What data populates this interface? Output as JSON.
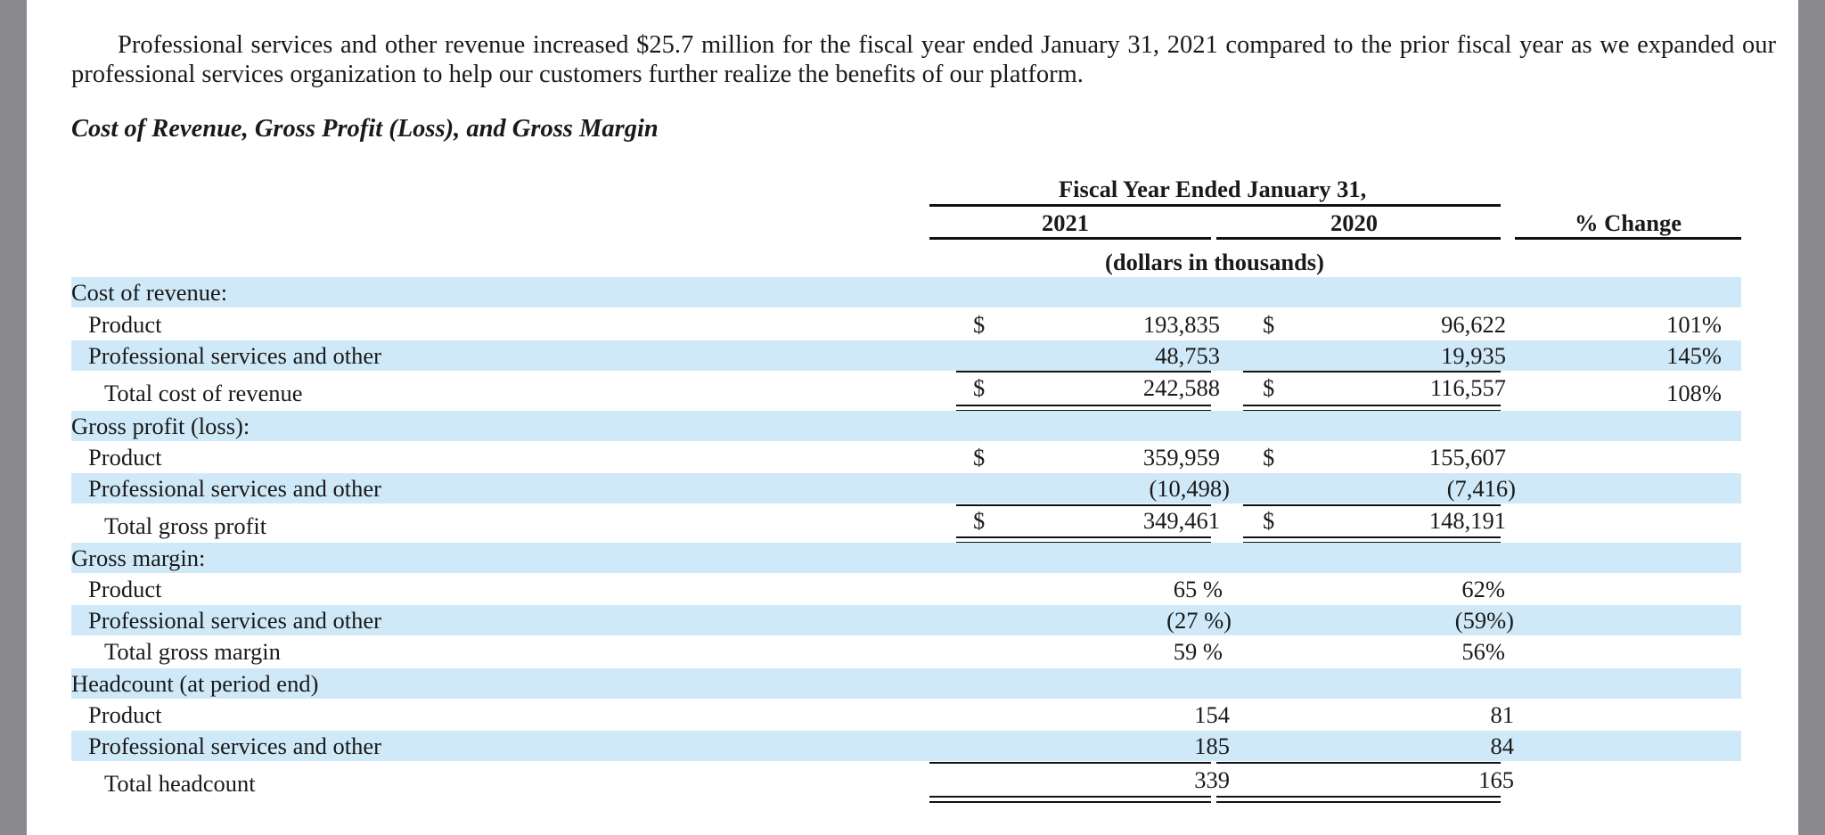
{
  "intro_paragraph": "Professional services and other revenue increased $25.7 million for the fiscal year ended January 31, 2021 compared to the prior fiscal year as we expanded our professional services organization to help our customers further realize the benefits of our platform.",
  "section_title": "Cost of Revenue, Gross Profit (Loss), and Gross Margin",
  "table": {
    "period_header": "Fiscal Year Ended January 31,",
    "col_2021": "2021",
    "col_2020": "2020",
    "col_change": "% Change",
    "units": "(dollars in thousands)",
    "currency": "$",
    "cost_of_revenue": {
      "label": "Cost of revenue:",
      "product": {
        "label": "Product",
        "v2021": "193,835",
        "v2020": "96,622",
        "change": "101%"
      },
      "professional": {
        "label": "Professional services and other",
        "v2021": "48,753",
        "v2020": "19,935",
        "change": "145%"
      },
      "total": {
        "label": "Total cost of revenue",
        "v2021": "242,588",
        "v2020": "116,557",
        "change": "108%"
      }
    },
    "gross_profit": {
      "label": "Gross profit (loss):",
      "product": {
        "label": "Product",
        "v2021": "359,959",
        "v2020": "155,607"
      },
      "professional": {
        "label": "Professional services and other",
        "v2021": "(10,498)",
        "v2020": "(7,416)"
      },
      "total": {
        "label": "Total gross profit",
        "v2021": "349,461",
        "v2020": "148,191"
      }
    },
    "gross_margin": {
      "label": "Gross margin:",
      "product": {
        "label": "Product",
        "v2021": "65 %",
        "v2020": "62%"
      },
      "professional": {
        "label": "Professional services and other",
        "v2021": "(27 %)",
        "v2020": "(59%)"
      },
      "total": {
        "label": "Total gross margin",
        "v2021": "59 %",
        "v2020": "56%"
      }
    },
    "headcount": {
      "label": "Headcount (at period end)",
      "product": {
        "label": "Product",
        "v2021": "154",
        "v2020": "81"
      },
      "professional": {
        "label": "Professional services and other",
        "v2021": "185",
        "v2020": "84"
      },
      "total": {
        "label": "Total headcount",
        "v2021": "339",
        "v2020": "165"
      }
    }
  }
}
